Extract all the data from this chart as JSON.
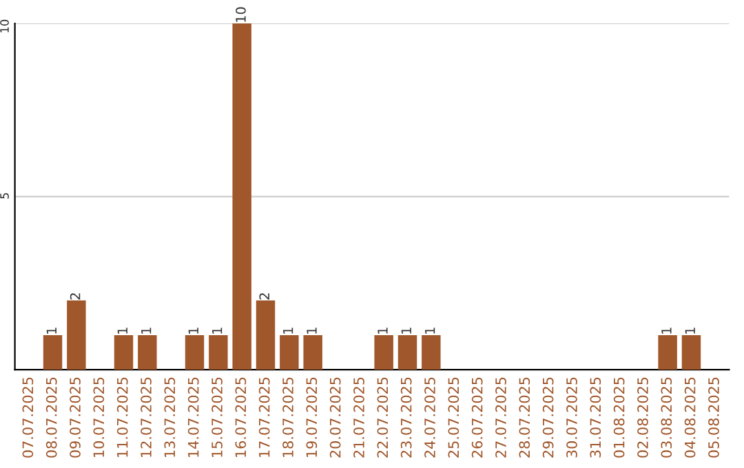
{
  "chart_data": {
    "type": "bar",
    "categories": [
      "07.07.2025",
      "08.07.2025",
      "09.07.2025",
      "10.07.2025",
      "11.07.2025",
      "12.07.2025",
      "13.07.2025",
      "14.07.2025",
      "15.07.2025",
      "16.07.2025",
      "17.07.2025",
      "18.07.2025",
      "19.07.2025",
      "20.07.2025",
      "21.07.2025",
      "22.07.2025",
      "23.07.2025",
      "24.07.2025",
      "25.07.2025",
      "26.07.2025",
      "27.07.2025",
      "28.07.2025",
      "29.07.2025",
      "30.07.2025",
      "31.07.2025",
      "01.08.2025",
      "02.08.2025",
      "03.08.2025",
      "04.08.2025",
      "05.08.2025"
    ],
    "values": [
      0,
      1,
      2,
      0,
      1,
      1,
      0,
      1,
      1,
      10,
      2,
      1,
      1,
      0,
      0,
      1,
      1,
      1,
      0,
      0,
      0,
      0,
      0,
      0,
      0,
      0,
      0,
      1,
      1,
      0
    ],
    "value_labels": [
      null,
      "1",
      "2",
      null,
      "1",
      "1",
      null,
      "1",
      "1",
      "10",
      "2",
      "1",
      "1",
      null,
      null,
      "1",
      "1",
      "1",
      null,
      null,
      null,
      null,
      null,
      null,
      null,
      null,
      null,
      "1",
      "1",
      null
    ],
    "color": "#a0572b",
    "ylim": [
      0,
      10
    ],
    "yticks": [
      5,
      10
    ],
    "grid": "y",
    "legend": false
  }
}
